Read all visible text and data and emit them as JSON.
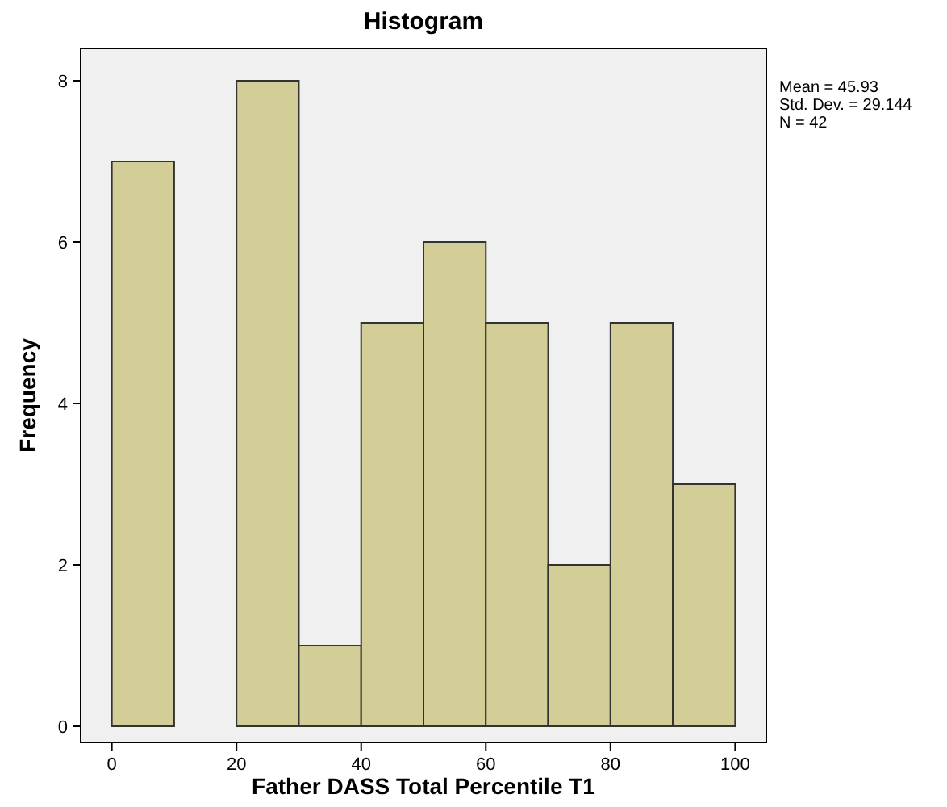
{
  "chart_data": {
    "type": "histogram",
    "title": "Histogram",
    "xlabel": "Father DASS Total Percentile T1",
    "ylabel": "Frequency",
    "bins": [
      0,
      10,
      20,
      30,
      40,
      50,
      60,
      70,
      80,
      90,
      100
    ],
    "values": [
      7,
      0,
      8,
      1,
      5,
      6,
      5,
      2,
      5,
      3
    ],
    "color": "#d3ce97",
    "xlim": [
      -5,
      105
    ],
    "xticks": [
      0,
      20,
      40,
      60,
      80,
      100
    ],
    "ylim": [
      -0.2,
      8.4
    ],
    "yticks": [
      0,
      2,
      4,
      6,
      8
    ],
    "annotations": [
      "Mean = 45.93",
      "Std. Dev. = 29.144",
      "N = 42"
    ]
  }
}
